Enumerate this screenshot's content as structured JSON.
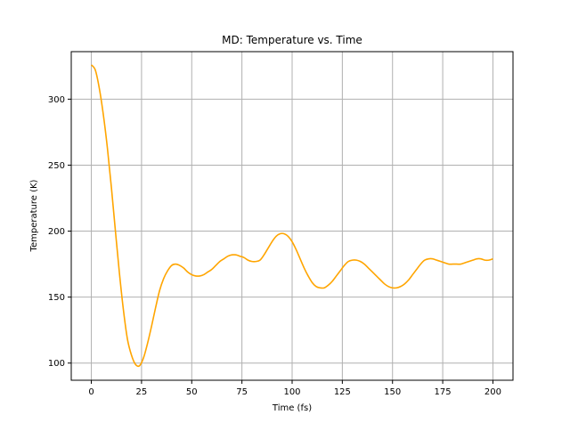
{
  "chart_data": {
    "type": "line",
    "title": "MD: Temperature vs. Time",
    "xlabel": "Time (fs)",
    "ylabel": "Temperature (K)",
    "xlim": [
      -10,
      210
    ],
    "ylim": [
      87,
      336
    ],
    "grid": true,
    "xticks": [
      0,
      25,
      50,
      75,
      100,
      125,
      150,
      175,
      200
    ],
    "yticks": [
      100,
      150,
      200,
      250,
      300
    ],
    "series": [
      {
        "color": "#ffa500",
        "x": [
          0,
          2,
          4,
          6,
          8,
          10,
          12,
          14,
          16,
          18,
          20,
          22,
          24,
          26,
          28,
          30,
          32,
          34,
          36,
          38,
          40,
          42,
          44,
          46,
          48,
          50,
          52,
          54,
          56,
          58,
          60,
          62,
          64,
          66,
          68,
          70,
          72,
          74,
          76,
          78,
          80,
          82,
          84,
          86,
          88,
          90,
          92,
          94,
          96,
          98,
          100,
          102,
          104,
          106,
          108,
          110,
          112,
          114,
          116,
          118,
          120,
          122,
          124,
          126,
          128,
          130,
          132,
          134,
          136,
          138,
          140,
          142,
          144,
          146,
          148,
          150,
          152,
          154,
          156,
          158,
          160,
          162,
          164,
          166,
          168,
          170,
          172,
          174,
          176,
          178,
          180,
          182,
          184,
          186,
          188,
          190,
          192,
          194,
          196,
          198,
          200
        ],
        "y": [
          326,
          322,
          308,
          288,
          263,
          233,
          200,
          168,
          140,
          118,
          106,
          99,
          98,
          104,
          115,
          128,
          142,
          155,
          164,
          170,
          174,
          175,
          174,
          172,
          169,
          167,
          166,
          166,
          167,
          169,
          171,
          174,
          177,
          179,
          181,
          182,
          182,
          181,
          180,
          178,
          177,
          177,
          178,
          182,
          187,
          192,
          196,
          198,
          198,
          196,
          192,
          186,
          179,
          172,
          166,
          161,
          158,
          157,
          157,
          159,
          162,
          166,
          170,
          174,
          177,
          178,
          178,
          177,
          175,
          172,
          169,
          166,
          163,
          160,
          158,
          157,
          157,
          158,
          160,
          163,
          167,
          171,
          175,
          178,
          179,
          179,
          178,
          177,
          176,
          175,
          175,
          175,
          175,
          176,
          177,
          178,
          179,
          179,
          178,
          178,
          179
        ]
      }
    ]
  }
}
